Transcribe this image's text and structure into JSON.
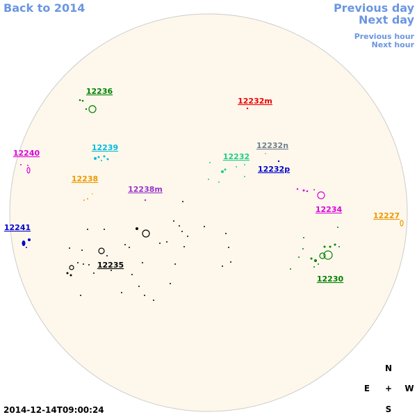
{
  "nav": {
    "back": "Back to 2014",
    "previous_day": "Previous day",
    "next_day": "Next day",
    "previous_hour": "Previous hour",
    "next_hour": "Next hour"
  },
  "regions": [
    {
      "label": "12236",
      "color": "#008000"
    },
    {
      "label": "12232m",
      "color": "#ee0000"
    },
    {
      "label": "12240",
      "color": "#dd00dd"
    },
    {
      "label": "12239",
      "color": "#00bbdd"
    },
    {
      "label": "12232n",
      "color": "#708090"
    },
    {
      "label": "12232",
      "color": "#22cc88"
    },
    {
      "label": "12232p",
      "color": "#0000cc"
    },
    {
      "label": "12238",
      "color": "#ee9900"
    },
    {
      "label": "12238m",
      "color": "#9933cc"
    },
    {
      "label": "12234",
      "color": "#dd00dd"
    },
    {
      "label": "12227",
      "color": "#ee9900"
    },
    {
      "label": "12241",
      "color": "#0000cc"
    },
    {
      "label": "12235",
      "color": "#000000"
    },
    {
      "label": "12230",
      "color": "#008000"
    }
  ],
  "compass": {
    "north": "N",
    "east": "E",
    "center": "+",
    "west": "W",
    "south": "S"
  },
  "timestamp": "2014-12-14T09:00:24"
}
